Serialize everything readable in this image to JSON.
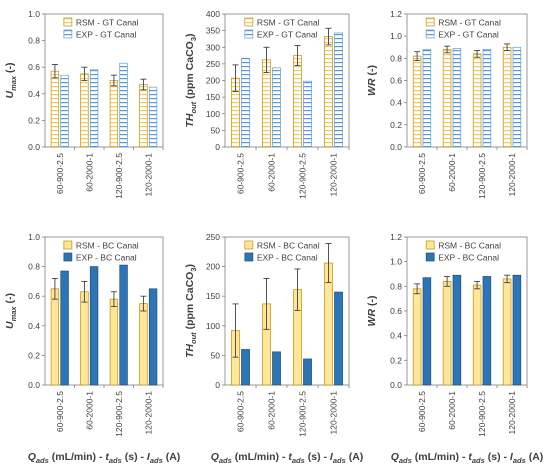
{
  "colors": {
    "rsm_fill": "#FFE699",
    "rsm_stroke": "#BF9000",
    "exp_fill": "#2E75B6",
    "exp_stroke": "#1F4E79",
    "axis": "#808080",
    "text": "#404040"
  },
  "bottom_xlabel": {
    "q": "Q",
    "q_sub": "ads",
    "q_rest": " (mL/min) - ",
    "t": "t",
    "t_sub": "ads",
    "t_rest": " (s) - ",
    "i": "I",
    "i_sub": "ads",
    "i_rest": " (A)"
  },
  "chart_data": [
    {
      "type": "bar",
      "row": 0,
      "col": 0,
      "style": "hatched",
      "ylabel_main": "U",
      "ylabel_sub": "max",
      "ylabel_rest": " (-)",
      "categories": [
        "60-900-2.5",
        "60-2000-1",
        "120-900-2.5",
        "120-2000-1"
      ],
      "ylim": [
        0,
        1
      ],
      "yticks": [
        0,
        0.2,
        0.4,
        0.6,
        0.8,
        1
      ],
      "ytick_labels": [
        "0.0",
        "0.2",
        "0.4",
        "0.6",
        "0.8",
        "1.0"
      ],
      "legend": "top-right",
      "series": [
        {
          "name": "RSM - GT Canal",
          "values": [
            0.57,
            0.55,
            0.5,
            0.47
          ],
          "errors": [
            0.05,
            0.05,
            0.04,
            0.04
          ]
        },
        {
          "name": "EXP - GT Canal",
          "values": [
            0.54,
            0.58,
            0.63,
            0.45
          ]
        }
      ]
    },
    {
      "type": "bar",
      "row": 0,
      "col": 1,
      "style": "hatched",
      "ylabel_main": "TH",
      "ylabel_sub": "out",
      "ylabel_rest": " (ppm CaCO",
      "ylabel_sub2": "3",
      "ylabel_end": ")",
      "categories": [
        "60-900-2.5",
        "60-2000-1",
        "120-900-2.5",
        "120-2000-1"
      ],
      "ylim": [
        0,
        400
      ],
      "yticks": [
        0,
        50,
        100,
        150,
        200,
        250,
        300,
        350,
        400
      ],
      "ytick_labels": [
        "0",
        "50",
        "100",
        "150",
        "200",
        "250",
        "300",
        "350",
        "400"
      ],
      "legend": "top-right",
      "series": [
        {
          "name": "RSM - GT Canal",
          "values": [
            207,
            262,
            275,
            332
          ],
          "errors": [
            40,
            38,
            30,
            25
          ]
        },
        {
          "name": "EXP - GT Canal",
          "values": [
            267,
            238,
            198,
            343
          ]
        }
      ]
    },
    {
      "type": "bar",
      "row": 0,
      "col": 2,
      "style": "hatched",
      "ylabel_main": "WR",
      "ylabel_sub": "",
      "ylabel_rest": " (-)",
      "categories": [
        "60-900-2.5",
        "60-2000-1",
        "120-900-2.5",
        "120-2000-1"
      ],
      "ylim": [
        0,
        1.2
      ],
      "yticks": [
        0,
        0.2,
        0.4,
        0.6,
        0.8,
        1,
        1.2
      ],
      "ytick_labels": [
        "0.0",
        "0.2",
        "0.4",
        "0.6",
        "0.8",
        "1.0",
        "1.2"
      ],
      "legend": "top-right",
      "series": [
        {
          "name": "RSM - GT Canal",
          "values": [
            0.82,
            0.88,
            0.84,
            0.9
          ],
          "errors": [
            0.04,
            0.03,
            0.03,
            0.03
          ]
        },
        {
          "name": "EXP - GT Canal",
          "values": [
            0.88,
            0.89,
            0.88,
            0.9
          ]
        }
      ]
    },
    {
      "type": "bar",
      "row": 1,
      "col": 0,
      "style": "solid",
      "ylabel_main": "U",
      "ylabel_sub": "max",
      "ylabel_rest": " (-)",
      "categories": [
        "60-900-2.5",
        "60-2000-1",
        "120-900-2.5",
        "120-2000-1"
      ],
      "ylim": [
        0,
        1
      ],
      "yticks": [
        0,
        0.2,
        0.4,
        0.6,
        0.8,
        1
      ],
      "ytick_labels": [
        "0.0",
        "0.2",
        "0.4",
        "0.6",
        "0.8",
        "1.0"
      ],
      "legend": "top-right",
      "series": [
        {
          "name": "RSM - BC Canal",
          "values": [
            0.65,
            0.63,
            0.58,
            0.55
          ],
          "errors": [
            0.07,
            0.07,
            0.05,
            0.05
          ]
        },
        {
          "name": "EXP - BC Canal",
          "values": [
            0.77,
            0.8,
            0.81,
            0.65
          ]
        }
      ]
    },
    {
      "type": "bar",
      "row": 1,
      "col": 1,
      "style": "solid",
      "ylabel_main": "TH",
      "ylabel_sub": "out",
      "ylabel_rest": " (ppm CaCO",
      "ylabel_sub2": "3",
      "ylabel_end": ")",
      "categories": [
        "60-900-2.5",
        "60-2000-1",
        "120-900-2.5",
        "120-2000-1"
      ],
      "ylim": [
        0,
        250
      ],
      "yticks": [
        0,
        50,
        100,
        150,
        200,
        250
      ],
      "ytick_labels": [
        "0",
        "50",
        "100",
        "150",
        "200",
        "250"
      ],
      "legend": "top-right",
      "series": [
        {
          "name": "RSM - BC Canal",
          "values": [
            92,
            137,
            161,
            206
          ],
          "errors": [
            45,
            43,
            35,
            33
          ]
        },
        {
          "name": "EXP - BC Canal",
          "values": [
            60,
            56,
            44,
            157
          ]
        }
      ]
    },
    {
      "type": "bar",
      "row": 1,
      "col": 2,
      "style": "solid",
      "ylabel_main": "WR",
      "ylabel_sub": "",
      "ylabel_rest": " (-)",
      "categories": [
        "60-900-2.5",
        "60-2000-1",
        "120-900-2.5",
        "120-2000-1"
      ],
      "ylim": [
        0,
        1.2
      ],
      "yticks": [
        0,
        0.2,
        0.4,
        0.6,
        0.8,
        1,
        1.2
      ],
      "ytick_labels": [
        "0.0",
        "0.2",
        "0.4",
        "0.6",
        "0.8",
        "1.0",
        "1.2"
      ],
      "legend": "top-right",
      "series": [
        {
          "name": "RSM - BC Canal",
          "values": [
            0.78,
            0.84,
            0.81,
            0.86
          ],
          "errors": [
            0.04,
            0.04,
            0.03,
            0.03
          ]
        },
        {
          "name": "EXP - BC Canal",
          "values": [
            0.87,
            0.89,
            0.88,
            0.89
          ]
        }
      ]
    }
  ]
}
